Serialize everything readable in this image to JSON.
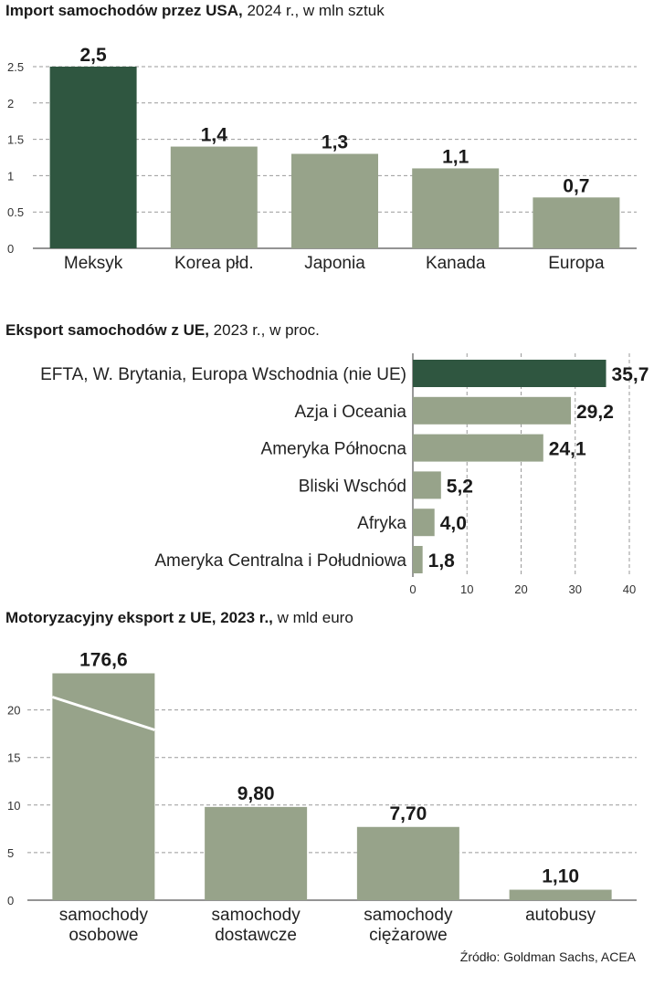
{
  "colors": {
    "highlight": "#2f5640",
    "bar": "#97a38a",
    "break_line": "#ffffff"
  },
  "source": "Źródło: Goldman Sachs, ACEA",
  "chart_data": [
    {
      "type": "bar",
      "title_bold": "Import samochodów przez USA,",
      "title_rest": " 2024 r., w mln sztuk",
      "categories": [
        "Meksyk",
        "Korea płd.",
        "Japonia",
        "Kanada",
        "Europa"
      ],
      "values": [
        2.5,
        1.4,
        1.3,
        1.1,
        0.7
      ],
      "value_labels": [
        "2,5",
        "1,4",
        "1,3",
        "1,1",
        "0,7"
      ],
      "yticks": [
        "0",
        "0.5",
        "1",
        "1.5",
        "2",
        "2.5"
      ],
      "ytick_values": [
        0,
        0.5,
        1,
        1.5,
        2,
        2.5
      ],
      "ylim": [
        0,
        2.5
      ],
      "highlight_index": 0
    },
    {
      "type": "bar",
      "orientation": "horizontal",
      "title_bold": "Eksport samochodów z UE,",
      "title_rest": " 2023 r., w proc.",
      "categories": [
        "EFTA, W. Brytania, Europa Wschodnia (nie UE)",
        "Azja i Oceania",
        "Ameryka Północna",
        "Bliski Wschód",
        "Afryka",
        "Ameryka Centralna i Południowa"
      ],
      "values": [
        35.7,
        29.2,
        24.1,
        5.2,
        4.0,
        1.8
      ],
      "value_labels": [
        "35,7",
        "29,2",
        "24,1",
        "5,2",
        "4,0",
        "1,8"
      ],
      "xticks": [
        "0",
        "10",
        "20",
        "30",
        "40"
      ],
      "xtick_values": [
        0,
        10,
        20,
        30,
        40
      ],
      "xlim": [
        0,
        40
      ],
      "highlight_index": 0
    },
    {
      "type": "bar",
      "title_bold": "Motoryzacyjny eksport z UE, 2023 r.,",
      "title_rest": " w mld euro",
      "categories": [
        [
          "samochody",
          "osobowe"
        ],
        [
          "samochody",
          "dostawcze"
        ],
        [
          "samochody",
          "ciężarowe"
        ],
        [
          "autobusy"
        ]
      ],
      "values": [
        176.6,
        9.8,
        7.7,
        1.1
      ],
      "value_labels": [
        "176,6",
        "9,80",
        "7,70",
        "1,10"
      ],
      "yticks": [
        "0",
        "5",
        "10",
        "15",
        "20"
      ],
      "ytick_values": [
        0,
        5,
        10,
        15,
        20
      ],
      "ylim": [
        0,
        25
      ],
      "broken_axis_bar": 0,
      "highlight_index": -1
    }
  ]
}
